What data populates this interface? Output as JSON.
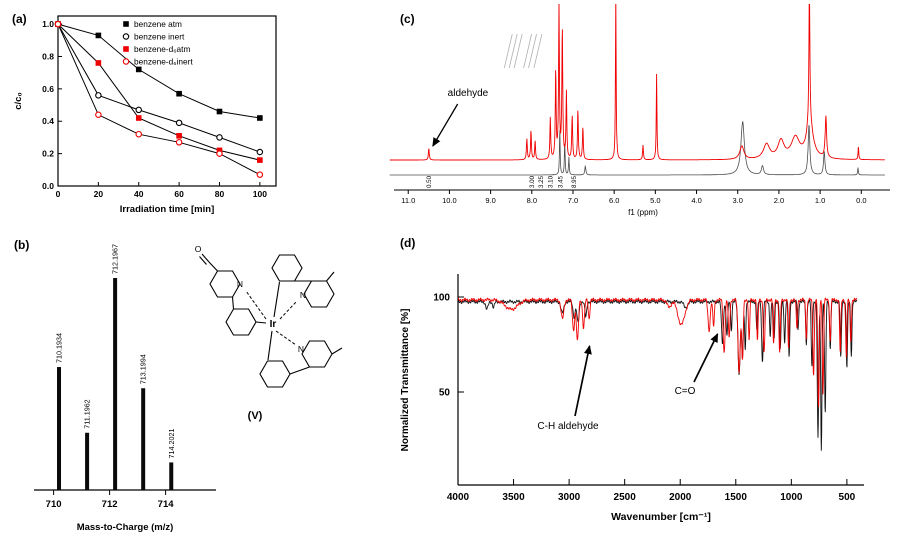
{
  "panels": {
    "a": {
      "label": "(a)"
    },
    "b": {
      "label": "(b)"
    },
    "c": {
      "label": "(c)"
    },
    "d": {
      "label": "(d)"
    }
  },
  "molecule": {
    "ir": "Ir",
    "n": "N",
    "o": "O",
    "label": "(V)"
  },
  "chart_data": [
    {
      "id": "kinetics",
      "type": "line",
      "xlabel": "Irradiation time [min]",
      "ylabel": "c/c₀",
      "xlim": [
        0,
        108
      ],
      "ylim": [
        0,
        1.05
      ],
      "xticks": [
        0,
        20,
        40,
        60,
        80,
        100
      ],
      "yticks": [
        0,
        0.2,
        0.4,
        0.6,
        0.8,
        1.0
      ],
      "x": [
        0,
        20,
        40,
        60,
        80,
        100
      ],
      "legend_position": "top-right-inside",
      "series": [
        {
          "name": "benzene atm",
          "marker": "square-filled",
          "color": "#000000",
          "line_color": "#000000",
          "values": [
            1.0,
            0.93,
            0.72,
            0.57,
            0.46,
            0.42
          ]
        },
        {
          "name": "benzene inert",
          "marker": "circle-open",
          "color": "#000000",
          "line_color": "#000000",
          "values": [
            1.0,
            0.56,
            0.47,
            0.39,
            0.3,
            0.21
          ]
        },
        {
          "name": "benzene-d₆atm",
          "marker": "square-filled",
          "color": "#ee0000",
          "line_color": "#000000",
          "values": [
            1.0,
            0.76,
            0.42,
            0.31,
            0.22,
            0.16
          ]
        },
        {
          "name": "benzene-d₆inert",
          "marker": "circle-open",
          "color": "#ee0000",
          "line_color": "#000000",
          "values": [
            1.0,
            0.44,
            0.32,
            0.27,
            0.2,
            0.07
          ]
        }
      ]
    },
    {
      "id": "mass-spec",
      "type": "bar",
      "xlabel": "Mass-to-Charge (m/z)",
      "xlim": [
        709.3,
        715.8
      ],
      "xticks": [
        710,
        712,
        714
      ],
      "peaks": [
        {
          "mz": 710.1934,
          "label": "710.1934",
          "rel_intensity": 0.58
        },
        {
          "mz": 711.1962,
          "label": "711.1962",
          "rel_intensity": 0.27
        },
        {
          "mz": 712.1967,
          "label": "712.1967",
          "rel_intensity": 1.0
        },
        {
          "mz": 713.1994,
          "label": "713.1994",
          "rel_intensity": 0.48
        },
        {
          "mz": 714.2021,
          "label": "714.2021",
          "rel_intensity": 0.13
        }
      ]
    },
    {
      "id": "nmr",
      "type": "line",
      "xlabel": "f1 (ppm)",
      "xlim": [
        11.2,
        -0.6
      ],
      "xticks": [
        11,
        10,
        9,
        8,
        7,
        6,
        5,
        4,
        3,
        2,
        1,
        0
      ],
      "annotations": [
        {
          "label": "aldehyde",
          "points_to_ppm": 10.5
        }
      ],
      "integrals": [
        {
          "ppm": 10.5,
          "label": "0.50"
        },
        {
          "ppm": 8.0,
          "label": "3.00"
        },
        {
          "ppm": 7.78,
          "label": "3.25"
        },
        {
          "ppm": 7.55,
          "label": "3.10"
        },
        {
          "ppm": 7.3,
          "label": "3.45"
        },
        {
          "ppm": 6.98,
          "label": "8.95"
        }
      ],
      "integral_marks": [
        8.62,
        8.5,
        8.38,
        8.15,
        8.03,
        7.9
      ],
      "series": [
        {
          "name": "gray-trace",
          "color": "#4d4d4d",
          "peaks": [
            [
              7.32,
              0.32,
              0.01
            ],
            [
              7.2,
              0.22,
              0.01
            ],
            [
              7.1,
              0.12,
              0.01
            ],
            [
              6.7,
              0.06,
              0.015
            ],
            [
              2.88,
              0.36,
              0.05
            ],
            [
              2.4,
              0.06,
              0.03
            ],
            [
              1.27,
              0.34,
              0.025
            ],
            [
              0.9,
              0.16,
              0.02
            ],
            [
              0.08,
              0.05,
              0.01
            ]
          ]
        },
        {
          "name": "red-trace",
          "color": "#f00000",
          "peaks": [
            [
              10.5,
              0.08,
              0.012
            ],
            [
              8.12,
              0.14,
              0.012
            ],
            [
              8.02,
              0.2,
              0.012
            ],
            [
              7.92,
              0.13,
              0.012
            ],
            [
              7.55,
              0.28,
              0.012
            ],
            [
              7.42,
              0.6,
              0.012
            ],
            [
              7.34,
              1.04,
              0.012
            ],
            [
              7.26,
              0.88,
              0.013
            ],
            [
              7.16,
              0.45,
              0.012
            ],
            [
              7.02,
              0.3,
              0.012
            ],
            [
              6.88,
              0.34,
              0.012
            ],
            [
              6.76,
              0.22,
              0.012
            ],
            [
              5.96,
              1.12,
              0.01
            ],
            [
              5.3,
              0.1,
              0.012
            ],
            [
              4.97,
              0.58,
              0.01
            ],
            [
              2.9,
              0.09,
              0.06
            ],
            [
              2.3,
              0.1,
              0.09
            ],
            [
              1.95,
              0.12,
              0.09
            ],
            [
              1.6,
              0.14,
              0.12
            ],
            [
              1.26,
              0.95,
              0.014
            ],
            [
              1.25,
              0.22,
              0.1
            ],
            [
              0.86,
              0.28,
              0.02
            ],
            [
              0.07,
              0.09,
              0.01
            ]
          ]
        }
      ]
    },
    {
      "id": "ir",
      "type": "line",
      "xlabel": "Wavenumber [cm⁻¹]",
      "ylabel": "Normalized Transmittance [%]",
      "xlim": [
        4000,
        400
      ],
      "xticks": [
        4000,
        3500,
        3000,
        2500,
        2000,
        1500,
        1000,
        500
      ],
      "yticks": [
        100,
        50
      ],
      "annotations": [
        {
          "label": "C-H aldehyde",
          "points_to_wavenumber": 2870
        },
        {
          "label": "C=O",
          "points_to_wavenumber": 1700
        }
      ],
      "series": [
        {
          "name": "black-trace",
          "color": "#111111",
          "baseline": 97.5,
          "dips": [
            [
              3740,
              4,
              15
            ],
            [
              3680,
              3,
              12
            ],
            [
              3060,
              6,
              18
            ],
            [
              2955,
              8,
              14
            ],
            [
              2920,
              11,
              14
            ],
            [
              2850,
              8,
              12
            ],
            [
              1950,
              3,
              25
            ],
            [
              1620,
              22,
              12
            ],
            [
              1580,
              18,
              10
            ],
            [
              1540,
              15,
              8
            ],
            [
              1470,
              38,
              14
            ],
            [
              1440,
              30,
              10
            ],
            [
              1415,
              25,
              8
            ],
            [
              1310,
              15,
              8
            ],
            [
              1260,
              32,
              10
            ],
            [
              1190,
              18,
              8
            ],
            [
              1155,
              20,
              8
            ],
            [
              1100,
              26,
              9
            ],
            [
              1060,
              22,
              8
            ],
            [
              1020,
              30,
              8
            ],
            [
              940,
              15,
              8
            ],
            [
              865,
              22,
              8
            ],
            [
              815,
              35,
              8
            ],
            [
              760,
              72,
              9
            ],
            [
              730,
              78,
              8
            ],
            [
              695,
              60,
              8
            ],
            [
              650,
              25,
              8
            ],
            [
              555,
              30,
              8
            ],
            [
              500,
              35,
              8
            ],
            [
              460,
              28,
              8
            ]
          ]
        },
        {
          "name": "red-trace",
          "color": "#f00000",
          "baseline": 98.5,
          "dips": [
            [
              3520,
              5,
              80
            ],
            [
              3060,
              10,
              18
            ],
            [
              2960,
              16,
              14
            ],
            [
              2925,
              22,
              13
            ],
            [
              2870,
              15,
              12
            ],
            [
              2820,
              10,
              10
            ],
            [
              2100,
              4,
              25
            ],
            [
              1990,
              13,
              45
            ],
            [
              1740,
              16,
              14
            ],
            [
              1700,
              14,
              10
            ],
            [
              1605,
              28,
              12
            ],
            [
              1560,
              20,
              10
            ],
            [
              1470,
              38,
              14
            ],
            [
              1440,
              32,
              10
            ],
            [
              1380,
              22,
              8
            ],
            [
              1305,
              22,
              8
            ],
            [
              1245,
              28,
              10
            ],
            [
              1160,
              24,
              8
            ],
            [
              1105,
              28,
              9
            ],
            [
              1025,
              26,
              8
            ],
            [
              950,
              15,
              8
            ],
            [
              865,
              20,
              8
            ],
            [
              800,
              40,
              9
            ],
            [
              755,
              58,
              9
            ],
            [
              715,
              50,
              8
            ],
            [
              650,
              22,
              8
            ],
            [
              560,
              28,
              8
            ],
            [
              505,
              30,
              8
            ],
            [
              465,
              22,
              8
            ]
          ]
        }
      ]
    }
  ]
}
